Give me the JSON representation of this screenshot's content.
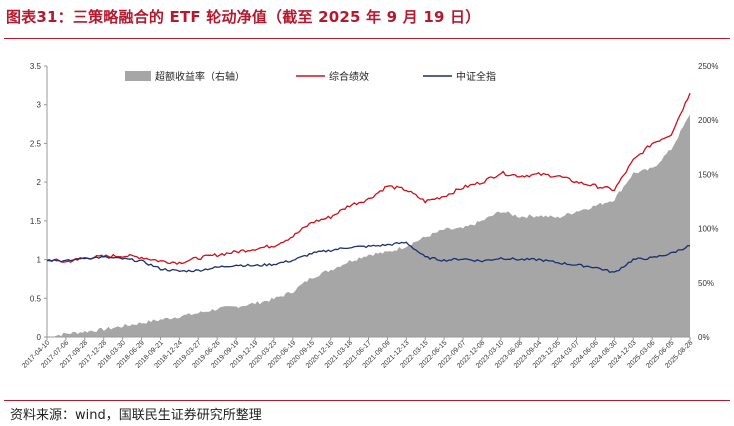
{
  "title": "图表31：三策略融合的 ETF 轮动净值（截至 2025 年 9 月 19 日）",
  "source": "资料来源：wind，国联民生证券研究所整理",
  "colors": {
    "title": "#b5192e",
    "excess": "#a6a6a6",
    "combined": "#d0101b",
    "index": "#1c2f6e"
  },
  "chart_data": {
    "type": "line",
    "title": "",
    "xlabel": "",
    "ylabel": "",
    "ylim": [
      0,
      3.5
    ],
    "y2lim": [
      0,
      2.5
    ],
    "yticks": [
      "0",
      "0.5",
      "1",
      "1.5",
      "2",
      "2.5",
      "3",
      "3.5"
    ],
    "y2ticks": [
      "0%",
      "50%",
      "100%",
      "150%",
      "200%",
      "250%"
    ],
    "grid": false,
    "legend": "top",
    "x_ticks": [
      "2017-04-10",
      "2017-07-06",
      "2017-09-28",
      "2017-12-28",
      "2018-03-30",
      "2018-06-29",
      "2018-09-21",
      "2018-12-24",
      "2019-03-27",
      "2019-06-26",
      "2019-09-19",
      "2019-12-19",
      "2020-03-23",
      "2020-06-19",
      "2020-09-15",
      "2020-12-16",
      "2021-03-18",
      "2021-06-17",
      "2021-09-09",
      "2021-12-13",
      "2022-03-15",
      "2022-06-15",
      "2022-09-07",
      "2022-12-08",
      "2023-03-10",
      "2023-06-08",
      "2023-09-04",
      "2023-12-05",
      "2024-03-07",
      "2024-06-06",
      "2024-08-30",
      "2024-12-03",
      "2025-03-06",
      "2025-06-05",
      "2025-08-28"
    ],
    "series": [
      {
        "name": "超额收益率（右轴）",
        "type": "area",
        "axis": "right",
        "values": [
          0.0,
          0.03,
          0.05,
          0.07,
          0.1,
          0.13,
          0.16,
          0.19,
          0.22,
          0.26,
          0.28,
          0.31,
          0.35,
          0.42,
          0.55,
          0.62,
          0.7,
          0.76,
          0.78,
          0.84,
          0.92,
          0.99,
          1.0,
          1.07,
          1.16,
          1.11,
          1.12,
          1.1,
          1.16,
          1.21,
          1.27,
          1.51,
          1.55,
          1.73,
          2.05
        ]
      },
      {
        "name": "综合绩效",
        "type": "line",
        "axis": "left",
        "values": [
          1.0,
          0.97,
          1.02,
          1.04,
          1.05,
          1.03,
          0.98,
          0.96,
          1.02,
          1.06,
          1.1,
          1.14,
          1.18,
          1.3,
          1.48,
          1.55,
          1.7,
          1.78,
          1.95,
          1.9,
          1.75,
          1.82,
          1.93,
          2.0,
          2.12,
          2.08,
          2.1,
          2.08,
          2.0,
          1.95,
          1.9,
          2.28,
          2.5,
          2.62,
          3.15
        ]
      },
      {
        "name": "中证全指",
        "type": "line",
        "axis": "left",
        "values": [
          1.0,
          0.98,
          1.02,
          1.03,
          1.01,
          0.98,
          0.88,
          0.85,
          0.86,
          0.9,
          0.93,
          0.92,
          0.94,
          0.99,
          1.08,
          1.12,
          1.16,
          1.17,
          1.19,
          1.22,
          1.03,
          0.99,
          1.01,
          0.98,
          1.02,
          1.0,
          1.0,
          0.96,
          0.93,
          0.9,
          0.83,
          1.0,
          1.02,
          1.08,
          1.18
        ]
      }
    ]
  }
}
